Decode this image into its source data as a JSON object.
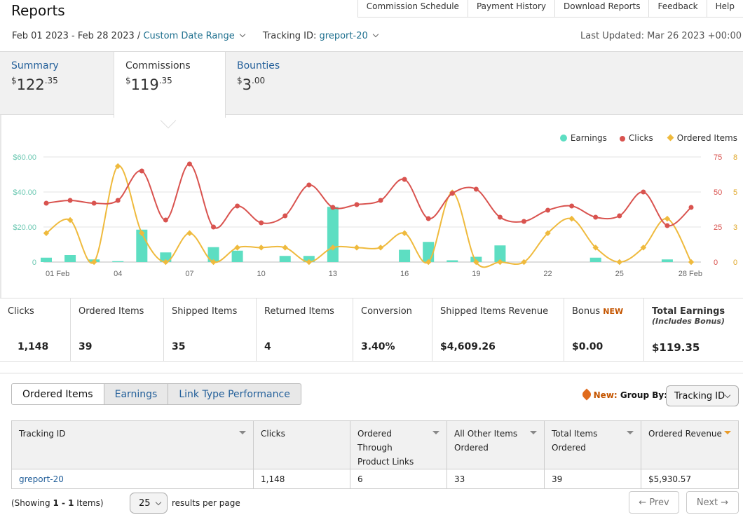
{
  "top_nav": [
    "Commission Schedule",
    "Payment History",
    "Download Reports",
    "Feedback",
    "Help"
  ],
  "page_title": "Reports",
  "date_range": "Feb 01 2023 - Feb 28 2023 /",
  "custom_range": "Custom Date Range",
  "tracking_label": "Tracking ID:",
  "tracking_value": "greport-20",
  "last_updated": "Last Updated: Mar 26 2023 +00:00",
  "tabs": [
    {
      "label": "Summary",
      "currency": "$",
      "whole": "122",
      "cents": ".35"
    },
    {
      "label": "Commissions",
      "currency": "$",
      "whole": "119",
      "cents": ".35"
    },
    {
      "label": "Bounties",
      "currency": "$",
      "whole": "3",
      "cents": ".00"
    }
  ],
  "legend": [
    {
      "name": "Earnings",
      "color": "#5ddec2",
      "shape": "circle"
    },
    {
      "name": "Clicks",
      "color": "#d9534f",
      "shape": "circle"
    },
    {
      "name": "Ordered Items",
      "color": "#efba3d",
      "shape": "diamond"
    }
  ],
  "chart_data": {
    "type": "bar+line",
    "x": [
      "01 Feb",
      "02",
      "03",
      "04",
      "05",
      "06",
      "07",
      "08",
      "09",
      "10",
      "11",
      "12",
      "13",
      "14",
      "15",
      "16",
      "17",
      "18",
      "19",
      "20",
      "21",
      "22",
      "23",
      "24",
      "25",
      "26",
      "27",
      "28 Feb"
    ],
    "x_tick_labels": [
      "01 Feb",
      "04",
      "07",
      "10",
      "13",
      "16",
      "19",
      "22",
      "25",
      "28 Feb"
    ],
    "left_axis": {
      "ticks": [
        "$60.00",
        "$40.00",
        "$20.00",
        "0"
      ],
      "range": [
        0,
        60
      ]
    },
    "right_axis_1": {
      "ticks": [
        "75",
        "50",
        "25",
        "0"
      ],
      "range": [
        0,
        75
      ]
    },
    "right_axis_2": {
      "ticks": [
        "8",
        "5",
        "3",
        "0"
      ],
      "range": [
        0,
        8
      ]
    },
    "series": [
      {
        "name": "Earnings",
        "type": "bar",
        "axis": "left",
        "color": "#5ddec2",
        "values": [
          2.5,
          4,
          1.5,
          0.5,
          18.5,
          5.5,
          0,
          8.5,
          6.5,
          0,
          3.5,
          3.5,
          31.5,
          0,
          0,
          7,
          11.5,
          1,
          3,
          9.5,
          0,
          0,
          0,
          2.5,
          0,
          0,
          1.5,
          0
        ]
      },
      {
        "name": "Clicks",
        "type": "line",
        "axis": "right_1",
        "color": "#d9534f",
        "values": [
          42,
          44,
          42,
          44,
          65,
          30,
          70,
          25,
          40,
          28,
          33,
          55,
          39,
          41,
          44,
          59,
          31,
          49,
          52,
          32,
          29,
          37,
          40,
          32,
          33,
          50,
          26,
          39
        ]
      },
      {
        "name": "Ordered Items",
        "type": "line",
        "axis": "right_2",
        "color": "#efba3d",
        "values": [
          2.2,
          3.2,
          0,
          7.3,
          2.2,
          0,
          2.2,
          0,
          1.1,
          1.1,
          1.1,
          0,
          1.1,
          1.1,
          1.1,
          2.2,
          0,
          5.3,
          0,
          0,
          0,
          2.2,
          3.3,
          1.1,
          0,
          1.1,
          3.3,
          0
        ]
      }
    ]
  },
  "stats": [
    {
      "label": "Clicks",
      "value": "1,148"
    },
    {
      "label": "Ordered Items",
      "value": "39"
    },
    {
      "label": "Shipped Items",
      "value": "35"
    },
    {
      "label": "Returned Items",
      "value": "4"
    },
    {
      "label": "Conversion",
      "value": "3.40%"
    },
    {
      "label": "Shipped Items Revenue",
      "value": "$4,609.26"
    },
    {
      "label": "Bonus",
      "badge": "NEW",
      "value": "$0.00"
    },
    {
      "label": "Total Earnings",
      "sub": "(Includes Bonus)",
      "value": "$119.35"
    }
  ],
  "bottom_tabs": [
    "Ordered Items",
    "Earnings",
    "Link Type Performance"
  ],
  "group_by": {
    "new": "New:",
    "label": "Group By:",
    "value": "Tracking ID"
  },
  "table": {
    "columns": [
      "Tracking ID",
      "Clicks",
      "Ordered Through Product Links",
      "All Other Items Ordered",
      "Total Items Ordered",
      "Ordered Revenue"
    ],
    "rows": [
      [
        "greport-20",
        "1,148",
        "6",
        "33",
        "39",
        "$5,930.57"
      ]
    ]
  },
  "pagination": {
    "showing_pre": "(Showing ",
    "showing_range": "1 - 1",
    "showing_post": " Items)",
    "per_page": "25",
    "per_page_label": "results per page",
    "prev": "← Prev",
    "next": "Next →"
  }
}
